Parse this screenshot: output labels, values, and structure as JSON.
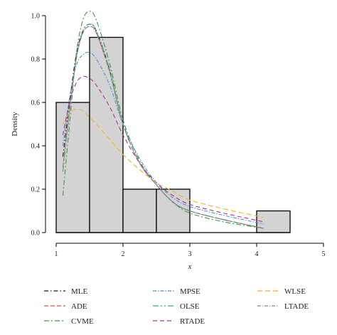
{
  "chart_data": {
    "type": "histogram",
    "xlabel": "x",
    "ylabel": "Density",
    "xlim": [
      1,
      5
    ],
    "ylim": [
      0,
      1.0
    ],
    "xticks": [
      "1",
      "2",
      "3",
      "4",
      "5"
    ],
    "yticks": [
      "0.0",
      "0.2",
      "0.4",
      "0.6",
      "0.8",
      "1.0"
    ],
    "bins": [
      {
        "x0": 1.0,
        "x1": 1.5,
        "density": 0.6
      },
      {
        "x0": 1.5,
        "x1": 2.0,
        "density": 0.9
      },
      {
        "x0": 2.0,
        "x1": 2.5,
        "density": 0.2
      },
      {
        "x0": 2.5,
        "x1": 3.0,
        "density": 0.2
      },
      {
        "x0": 3.0,
        "x1": 3.5,
        "density": 0.0
      },
      {
        "x0": 3.5,
        "x1": 4.0,
        "density": 0.0
      },
      {
        "x0": 4.0,
        "x1": 4.5,
        "density": 0.1
      }
    ],
    "bar_fill": "#d3d3d3",
    "series": [
      {
        "name": "MLE",
        "color": "#1a1a1a",
        "x": [
          1.1,
          1.2,
          1.3,
          1.4,
          1.5,
          1.6,
          1.8,
          2.0,
          2.25,
          2.5,
          2.75,
          3.0,
          3.5,
          4.1
        ],
        "y": [
          0.35,
          0.6,
          0.82,
          0.93,
          0.96,
          0.93,
          0.75,
          0.5,
          0.32,
          0.22,
          0.14,
          0.1,
          0.06,
          0.02
        ]
      },
      {
        "name": "ADE",
        "color": "#d9534f",
        "x": [
          1.1,
          1.2,
          1.3,
          1.4,
          1.5,
          1.6,
          1.8,
          2.0,
          2.25,
          2.5,
          2.75,
          3.0,
          3.5,
          4.1
        ],
        "y": [
          0.3,
          0.57,
          0.8,
          0.92,
          0.95,
          0.92,
          0.74,
          0.5,
          0.32,
          0.22,
          0.14,
          0.1,
          0.06,
          0.02
        ]
      },
      {
        "name": "CVME",
        "color": "#3a9a3a",
        "x": [
          1.1,
          1.2,
          1.3,
          1.4,
          1.5,
          1.6,
          1.8,
          2.0,
          2.25,
          2.5,
          2.75,
          3.0,
          3.5,
          4.1
        ],
        "y": [
          0.17,
          0.5,
          0.82,
          0.98,
          1.02,
          0.98,
          0.78,
          0.52,
          0.33,
          0.22,
          0.14,
          0.09,
          0.05,
          0.02
        ]
      },
      {
        "name": "MPSE",
        "color": "#4a90d9",
        "x": [
          1.1,
          1.2,
          1.3,
          1.4,
          1.5,
          1.6,
          1.8,
          2.0,
          2.25,
          2.5,
          2.75,
          3.0,
          3.5,
          4.1
        ],
        "y": [
          0.4,
          0.62,
          0.77,
          0.82,
          0.83,
          0.8,
          0.68,
          0.5,
          0.34,
          0.23,
          0.16,
          0.12,
          0.08,
          0.04
        ]
      },
      {
        "name": "OLSE",
        "color": "#3aa69a",
        "x": [
          1.1,
          1.2,
          1.3,
          1.4,
          1.5,
          1.6,
          1.8,
          2.0,
          2.25,
          2.5,
          2.75,
          3.0,
          3.5,
          4.1
        ],
        "y": [
          0.28,
          0.56,
          0.8,
          0.93,
          0.96,
          0.93,
          0.75,
          0.5,
          0.32,
          0.22,
          0.14,
          0.1,
          0.06,
          0.02
        ]
      },
      {
        "name": "RTADE",
        "color": "#b0308f",
        "x": [
          1.1,
          1.2,
          1.3,
          1.4,
          1.5,
          1.6,
          1.8,
          2.0,
          2.25,
          2.5,
          2.75,
          3.0,
          3.5,
          4.1
        ],
        "y": [
          0.45,
          0.6,
          0.69,
          0.72,
          0.71,
          0.68,
          0.58,
          0.45,
          0.32,
          0.23,
          0.17,
          0.13,
          0.09,
          0.05
        ]
      },
      {
        "name": "WLSE",
        "color": "#f0b429",
        "x": [
          1.1,
          1.2,
          1.3,
          1.4,
          1.5,
          1.6,
          1.8,
          2.0,
          2.25,
          2.5,
          2.75,
          3.0,
          3.5,
          4.1
        ],
        "y": [
          0.5,
          0.55,
          0.57,
          0.56,
          0.53,
          0.5,
          0.43,
          0.36,
          0.29,
          0.23,
          0.19,
          0.15,
          0.11,
          0.07
        ]
      },
      {
        "name": "LTADE",
        "color": "#8c8c8c",
        "x": [
          1.1,
          1.2,
          1.3,
          1.4,
          1.5,
          1.6,
          1.8,
          2.0,
          2.25,
          2.5,
          2.75,
          3.0,
          3.5,
          4.1
        ],
        "y": [
          0.3,
          0.56,
          0.8,
          0.92,
          0.95,
          0.92,
          0.74,
          0.5,
          0.32,
          0.22,
          0.14,
          0.1,
          0.06,
          0.02
        ]
      }
    ],
    "legend": {
      "placement": "bottom",
      "columns": [
        [
          "MLE",
          "ADE",
          "CVME"
        ],
        [
          "MPSE",
          "OLSE",
          "RTADE"
        ],
        [
          "WLSE",
          "LTADE"
        ]
      ]
    }
  }
}
